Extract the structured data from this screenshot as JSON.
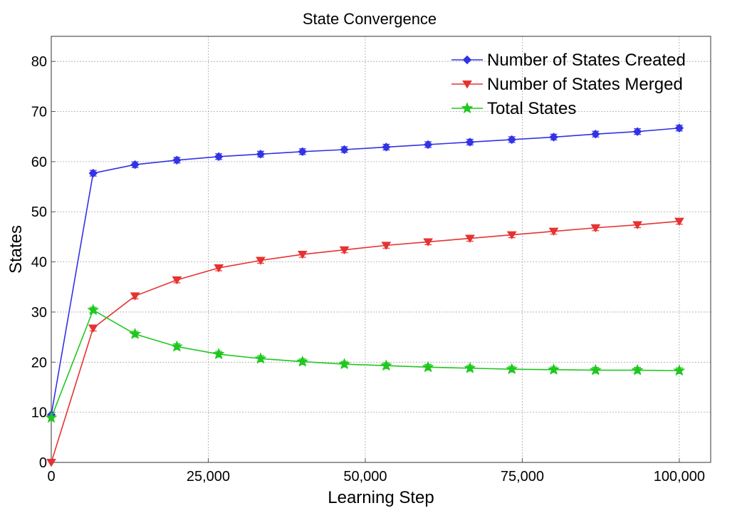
{
  "chart_data": {
    "type": "line",
    "title": "State Convergence",
    "xlabel": "Learning Step",
    "ylabel": "States",
    "xlim": [
      0,
      105000
    ],
    "ylim": [
      0,
      85
    ],
    "xticks": [
      0,
      25000,
      50000,
      75000,
      100000
    ],
    "xtick_labels": [
      "0",
      "25,000",
      "50,000",
      "75,000",
      "100,000"
    ],
    "yticks": [
      0,
      10,
      20,
      30,
      40,
      50,
      60,
      70,
      80
    ],
    "ytick_labels": [
      "0",
      "10",
      "20",
      "30",
      "40",
      "50",
      "60",
      "70",
      "80"
    ],
    "grid": true,
    "legend_position": "top-right",
    "x": [
      0,
      6667,
      13333,
      20000,
      26667,
      33333,
      40000,
      46667,
      53333,
      60000,
      66667,
      73333,
      80000,
      86667,
      93333,
      100000
    ],
    "series": [
      {
        "name": "Number of States Created",
        "color": "#3232e6",
        "marker": "diamond",
        "values": [
          9.5,
          57.7,
          59.4,
          60.3,
          61.0,
          61.5,
          62.0,
          62.4,
          62.9,
          63.4,
          63.9,
          64.4,
          64.9,
          65.5,
          66.0,
          66.7
        ]
      },
      {
        "name": "Number of States Merged",
        "color": "#e63232",
        "marker": "triangle-down",
        "values": [
          0.0,
          26.8,
          33.2,
          36.4,
          38.8,
          40.3,
          41.5,
          42.4,
          43.3,
          44.0,
          44.7,
          45.4,
          46.1,
          46.8,
          47.4,
          48.1
        ]
      },
      {
        "name": "Total States",
        "color": "#1ec81e",
        "marker": "star",
        "values": [
          8.9,
          30.4,
          25.6,
          23.1,
          21.6,
          20.7,
          20.1,
          19.6,
          19.3,
          19.0,
          18.8,
          18.6,
          18.5,
          18.4,
          18.4,
          18.3
        ]
      }
    ]
  }
}
